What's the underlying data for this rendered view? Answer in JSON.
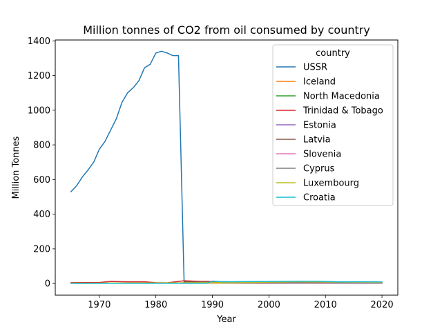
{
  "chart_data": {
    "type": "line",
    "title": "Million tonnes of CO2 from oil consumed by country",
    "xlabel": "Year",
    "ylabel": "Million Tonnes",
    "xlim": [
      1962.2,
      2022.8
    ],
    "ylim": [
      -67,
      1405
    ],
    "xticks": [
      1970,
      1980,
      1990,
      2000,
      2010,
      2020
    ],
    "yticks": [
      0,
      200,
      400,
      600,
      800,
      1000,
      1200,
      1400
    ],
    "grid": false,
    "legend": {
      "title": "country",
      "placement": "top-right"
    },
    "series": [
      {
        "name": "USSR",
        "color": "#1f77b4",
        "x": [
          1965,
          1966,
          1967,
          1968,
          1969,
          1970,
          1971,
          1972,
          1973,
          1974,
          1975,
          1976,
          1977,
          1978,
          1979,
          1980,
          1981,
          1982,
          1983,
          1984,
          1985
        ],
        "y": [
          530,
          565,
          615,
          655,
          700,
          775,
          820,
          885,
          950,
          1045,
          1100,
          1130,
          1170,
          1245,
          1265,
          1330,
          1340,
          1330,
          1315,
          1315,
          3
        ]
      },
      {
        "name": "Iceland",
        "color": "#ff7f0e",
        "x": [
          1965,
          1975,
          1985,
          1995,
          2005,
          2015,
          2020
        ],
        "y": [
          2,
          3,
          2,
          2,
          3,
          2,
          2
        ]
      },
      {
        "name": "North Macedonia",
        "color": "#2ca02c",
        "x": [
          1990,
          1995,
          2000,
          2005,
          2010,
          2015,
          2020
        ],
        "y": [
          4,
          3,
          3,
          3,
          3,
          3,
          3
        ]
      },
      {
        "name": "Trinidad & Tobago",
        "color": "#d62728",
        "x": [
          1965,
          1970,
          1972,
          1975,
          1978,
          1980,
          1982,
          1985,
          1988,
          1990,
          1995,
          2000,
          2005,
          2010,
          2015,
          2020
        ],
        "y": [
          5,
          6,
          12,
          10,
          10,
          5,
          4,
          16,
          12,
          12,
          8,
          7,
          6,
          5,
          5,
          4
        ]
      },
      {
        "name": "Estonia",
        "color": "#9467bd",
        "x": [
          1985,
          1990,
          1995,
          2000,
          2005,
          2010,
          2015,
          2020
        ],
        "y": [
          9,
          6,
          3,
          2,
          2,
          2,
          2,
          2
        ]
      },
      {
        "name": "Latvia",
        "color": "#8c564b",
        "x": [
          1985,
          1990,
          1995,
          2000,
          2005,
          2010,
          2015,
          2020
        ],
        "y": [
          10,
          8,
          4,
          3,
          4,
          4,
          4,
          4
        ]
      },
      {
        "name": "Slovenia",
        "color": "#e377c2",
        "x": [
          1990,
          1995,
          2000,
          2005,
          2010,
          2015,
          2020
        ],
        "y": [
          6,
          7,
          7,
          7,
          7,
          6,
          5
        ]
      },
      {
        "name": "Cyprus",
        "color": "#7f7f7f",
        "x": [
          1965,
          1975,
          1985,
          1990,
          1995,
          2000,
          2005,
          2010,
          2015,
          2020
        ],
        "y": [
          1,
          2,
          4,
          5,
          6,
          7,
          7,
          7,
          6,
          6
        ]
      },
      {
        "name": "Luxembourg",
        "color": "#bcbd22",
        "x": [
          1965,
          1975,
          1985,
          1995,
          2000,
          2005,
          2010,
          2015,
          2020
        ],
        "y": [
          2,
          3,
          4,
          6,
          8,
          10,
          9,
          8,
          7
        ]
      },
      {
        "name": "Croatia",
        "color": "#17becf",
        "x": [
          1965,
          1970,
          1975,
          1980,
          1985,
          1989,
          1990,
          1992,
          1995,
          2000,
          2005,
          2008,
          2010,
          2012,
          2015,
          2018,
          2020
        ],
        "y": [
          1,
          1,
          1,
          1,
          1,
          1,
          14,
          10,
          11,
          12,
          13,
          13,
          12,
          10,
          10,
          10,
          9
        ]
      }
    ]
  }
}
